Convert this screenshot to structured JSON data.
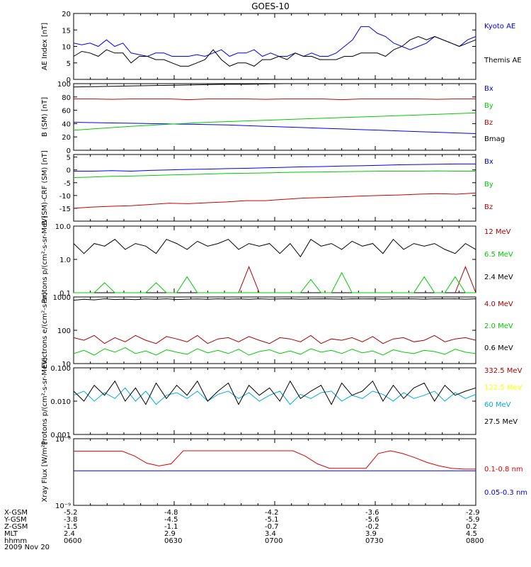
{
  "title": "GOES-10",
  "date_label": "2009 Nov 20",
  "time_axis": {
    "rows": [
      {
        "label": "X-GSM",
        "values": [
          "-5.2",
          "-4.8",
          "-4.2",
          "-3.6",
          "-2.9"
        ]
      },
      {
        "label": "Y-GSM",
        "values": [
          "-3.8",
          "-4.5",
          "-5.1",
          "-5.6",
          "-5.9"
        ]
      },
      {
        "label": "Z-GSM",
        "values": [
          "-1.5",
          "-1.1",
          "-0.7",
          "-0.2",
          "0.2"
        ]
      },
      {
        "label": "MLT",
        "values": [
          "2.4",
          "2.9",
          "3.4",
          "3.9",
          "4.5"
        ]
      },
      {
        "label": "hhmm",
        "values": [
          "0600",
          "0630",
          "0700",
          "0730",
          "0800"
        ]
      }
    ]
  },
  "chart_data": [
    {
      "type": "line",
      "ylabel": "AE Index [nT]",
      "yticks": [
        "0",
        "5",
        "10",
        "15",
        "20"
      ],
      "ylim": [
        0,
        20
      ],
      "scale": "linear",
      "series": [
        {
          "name": "Kyoto AE",
          "color": "#0000ee",
          "values": [
            11,
            10.5,
            11,
            10,
            12,
            10,
            11,
            8,
            7.5,
            7,
            8,
            8,
            7,
            7,
            7,
            7.5,
            7,
            8,
            9,
            7,
            8,
            8,
            9,
            7,
            8,
            7,
            7,
            8,
            7,
            8,
            7,
            7,
            8,
            10,
            12,
            16,
            16,
            14,
            13,
            11,
            10,
            9,
            10,
            11,
            13,
            12,
            11,
            10,
            12,
            13
          ]
        },
        {
          "name": "Themis AE",
          "color": "#000000",
          "values": [
            7,
            8.5,
            8,
            7,
            9,
            8,
            8,
            5,
            7,
            7,
            6,
            6,
            5,
            4,
            4,
            5,
            6,
            9,
            6,
            4,
            5,
            5,
            4,
            6,
            6,
            7,
            6,
            8,
            7,
            7,
            6,
            6,
            6,
            7,
            7,
            8,
            8,
            8,
            7,
            9,
            10,
            12,
            13,
            12,
            13,
            12,
            11,
            10,
            11,
            12
          ]
        }
      ]
    },
    {
      "type": "line",
      "ylabel": "B (SM) [nT]",
      "yticks": [
        "0",
        "20",
        "40",
        "60",
        "80",
        "100"
      ],
      "ylim": [
        0,
        100
      ],
      "scale": "linear",
      "series": [
        {
          "name": "Bx",
          "color": "#0000ee",
          "values": [
            42,
            41.5,
            41,
            40.5,
            40,
            39.5,
            39,
            38.5,
            38,
            37,
            36,
            35,
            34,
            33,
            32,
            31,
            30,
            29,
            28,
            27,
            26,
            25
          ]
        },
        {
          "name": "By",
          "color": "#00cc00",
          "values": [
            30,
            32,
            34,
            36,
            37.5,
            39,
            40.5,
            42,
            43,
            44,
            45,
            46,
            47,
            48,
            49,
            50,
            51,
            52,
            53,
            54,
            55,
            56
          ]
        },
        {
          "name": "Bz",
          "color": "#cc0000",
          "values": [
            77,
            77,
            76.5,
            77,
            77,
            77,
            76,
            77,
            77,
            77,
            76.5,
            77,
            77,
            77,
            76,
            77,
            77,
            77,
            77,
            76.5,
            77,
            77
          ]
        },
        {
          "name": "Bmag",
          "color": "#000000",
          "values": [
            95,
            95.5,
            96,
            96.5,
            97,
            97.5,
            98,
            98.5,
            99,
            99,
            99.5,
            100,
            100,
            100.5,
            101,
            101,
            101.5,
            101.5,
            102,
            102,
            102,
            102
          ]
        }
      ]
    },
    {
      "type": "line",
      "ylabel": "B (SM)-CRF (SM) [nT]",
      "yticks": [
        "-15",
        "-10",
        "-5",
        "0",
        "5"
      ],
      "ylim": [
        -20,
        6
      ],
      "scale": "linear",
      "series": [
        {
          "name": "Bx",
          "color": "#0000ee",
          "values": [
            -0.5,
            -0.5,
            -0.3,
            -0.5,
            -0.2,
            0,
            0.2,
            0.3,
            0.5,
            0.6,
            0.8,
            1,
            1.2,
            1.3,
            1.5,
            1.6,
            1.8,
            2,
            2.1,
            2.2,
            2.3,
            2.3
          ]
        },
        {
          "name": "By",
          "color": "#00cc00",
          "values": [
            -3,
            -2.8,
            -2.5,
            -2.4,
            -2.2,
            -2,
            -1.8,
            -1.6,
            -1.4,
            -1.3,
            -1.2,
            -1,
            -0.9,
            -0.8,
            -0.7,
            -0.6,
            -0.5,
            -0.5,
            -0.5,
            -0.4,
            -0.5,
            -0.5
          ]
        },
        {
          "name": "Bz",
          "color": "#cc0000",
          "values": [
            -15,
            -14.5,
            -14.2,
            -14,
            -13.5,
            -13,
            -13.2,
            -12.8,
            -12.5,
            -12,
            -12,
            -11.5,
            -11,
            -10.8,
            -10.5,
            -10.2,
            -10,
            -9.8,
            -9.5,
            -9.3,
            -9.5,
            -9
          ]
        }
      ]
    },
    {
      "type": "line",
      "ylabel": "Protons p/(cm²-s-sr-MeV)",
      "yticks": [
        "0.1",
        "1.0",
        "10.0"
      ],
      "ylim": [
        0.1,
        10
      ],
      "scale": "log",
      "series": [
        {
          "name": "12 MeV",
          "color": "#aa0000",
          "values": [
            null,
            null,
            null,
            null,
            null,
            null,
            null,
            null,
            null,
            null,
            null,
            null,
            null,
            null,
            null,
            0.1,
            0.1,
            0.6,
            0.1,
            0.1,
            null,
            null,
            null,
            null,
            null,
            null,
            null,
            null,
            null,
            null,
            null,
            null,
            null,
            null,
            null,
            null,
            null,
            0.1,
            0.6,
            0.1
          ]
        },
        {
          "name": "6.5 MeV",
          "color": "#00cc00",
          "values": [
            0.1,
            0.1,
            0.1,
            0.2,
            0.1,
            0.1,
            0.1,
            0.1,
            0.2,
            0.1,
            0.1,
            0.3,
            0.1,
            0.1,
            0.1,
            0.1,
            0.1,
            0.1,
            0.1,
            0.1,
            0.1,
            0.1,
            0.1,
            0.25,
            0.1,
            0.1,
            0.4,
            0.1,
            0.1,
            0.1,
            0.1,
            0.1,
            0.1,
            0.1,
            0.3,
            0.1,
            0.1,
            0.3,
            0.1,
            0.1
          ]
        },
        {
          "name": "2.4 MeV",
          "color": "#000000",
          "values": [
            3,
            1.5,
            3,
            2.5,
            4,
            2,
            3,
            2.5,
            1.5,
            4,
            3,
            2,
            3.5,
            2.5,
            3,
            4,
            2,
            3,
            2.5,
            3,
            1.5,
            3,
            1.2,
            4,
            2.5,
            3,
            2,
            3.5,
            2.5,
            3,
            1.5,
            4,
            2,
            3,
            2.5,
            3,
            2,
            1.5,
            3,
            2
          ]
        }
      ]
    },
    {
      "type": "line",
      "ylabel": "Electrons e/(cm²-s-sr)",
      "yticks": [
        "10",
        "100",
        "1000"
      ],
      "ylim": [
        10,
        1000
      ],
      "scale": "log",
      "series": [
        {
          "name": "4.0 MeV",
          "color": "#aa0000",
          "values": [
            60,
            50,
            70,
            40,
            60,
            45,
            70,
            50,
            40,
            65,
            55,
            45,
            70,
            40,
            55,
            60,
            45,
            65,
            50,
            40,
            60,
            55,
            45,
            70,
            40,
            55,
            50,
            60,
            45,
            65,
            40,
            55,
            60,
            45,
            50,
            70,
            45,
            55,
            60,
            50
          ]
        },
        {
          "name": "2.0 MeV",
          "color": "#00cc00",
          "values": [
            20,
            25,
            18,
            28,
            22,
            30,
            20,
            24,
            18,
            26,
            22,
            19,
            28,
            21,
            25,
            20,
            27,
            18,
            23,
            26,
            20,
            24,
            19,
            28,
            22,
            25,
            20,
            27,
            21,
            24,
            18,
            26,
            22,
            20,
            25,
            23,
            19,
            27,
            22,
            20
          ]
        },
        {
          "name": "0.6 MeV",
          "color": "#000000",
          "values": [
            800,
            850,
            820,
            880,
            840,
            860,
            830,
            870,
            850,
            880,
            840,
            860,
            870,
            850,
            880,
            860,
            870,
            850,
            880,
            860,
            870,
            880,
            860,
            870,
            880,
            870,
            860,
            880,
            870,
            880,
            860,
            870,
            880,
            870,
            860,
            880,
            870,
            880,
            860,
            880
          ]
        }
      ]
    },
    {
      "type": "line",
      "ylabel": "Protons p/(cm²-s-sr-MeV)",
      "yticks": [
        "0.001",
        "0.010",
        "0.100"
      ],
      "ylim": [
        0.001,
        0.1
      ],
      "scale": "log",
      "series": [
        {
          "name": "332.5 MeV",
          "color": "#aa0000",
          "values": []
        },
        {
          "name": "122.5 MeV",
          "color": "#ffff00",
          "values": []
        },
        {
          "name": "60 MeV",
          "color": "#00aadd",
          "values": [
            0.015,
            0.02,
            0.01,
            0.018,
            0.012,
            0.025,
            0.01,
            0.02,
            0.008,
            0.015,
            0.018,
            0.012,
            0.02,
            0.01,
            0.016,
            0.02,
            0.012,
            0.018,
            0.01,
            0.015,
            0.02,
            0.008,
            0.016,
            0.012,
            0.018,
            0.02,
            0.01,
            0.015,
            0.012,
            0.02,
            0.016,
            0.01,
            0.018,
            0.012,
            0.015,
            0.02,
            0.01,
            0.018,
            0.012,
            0.016
          ]
        },
        {
          "name": "27.5 MeV",
          "color": "#000000",
          "values": [
            0.02,
            0.01,
            0.03,
            0.015,
            0.04,
            0.01,
            0.025,
            0.008,
            0.035,
            0.012,
            0.03,
            0.015,
            0.04,
            0.01,
            0.02,
            0.035,
            0.008,
            0.03,
            0.015,
            0.025,
            0.01,
            0.04,
            0.012,
            0.02,
            0.03,
            0.008,
            0.035,
            0.015,
            0.02,
            0.04,
            0.01,
            0.03,
            0.012,
            0.025,
            0.035,
            0.01,
            0.03,
            0.015,
            0.02,
            0.025
          ]
        }
      ]
    },
    {
      "type": "line",
      "ylabel": "Xray Flux [W/m²]",
      "yticks": [
        "10⁻⁸",
        "10⁻⁹"
      ],
      "ylim": [
        1e-09,
        1e-08
      ],
      "scale": "log",
      "series": [
        {
          "name": "0.1-0.8 nm",
          "color": "#dd0000",
          "values": [
            6.5e-09,
            6.5e-09,
            6.5e-09,
            6.5e-09,
            6.5e-09,
            5.5e-09,
            4.3e-09,
            3.9e-09,
            4.2e-09,
            6.6e-09,
            6.6e-09,
            6.6e-09,
            6.6e-09,
            6.6e-09,
            6.6e-09,
            6.6e-09,
            6.6e-09,
            6.6e-09,
            6.6e-09,
            5.5e-09,
            4.2e-09,
            3.6e-09,
            3.6e-09,
            3.6e-09,
            3.6e-09,
            6e-09,
            6.6e-09,
            6e-09,
            5.2e-09,
            4.4e-09,
            3.9e-09,
            3.6e-09,
            3.5e-09,
            3.5e-09
          ]
        },
        {
          "name": "0.05-0.3 nm",
          "color": "#0000ee",
          "values": [
            3.3e-09,
            3.3e-09,
            3.3e-09,
            3.3e-09,
            3.3e-09,
            3.3e-09,
            3.3e-09,
            3.3e-09,
            3.3e-09,
            3.3e-09,
            3.3e-09,
            3.3e-09,
            3.3e-09,
            3.3e-09,
            3.3e-09,
            3.3e-09,
            3.3e-09,
            3.3e-09,
            3.3e-09,
            3.3e-09,
            3.3e-09,
            3.3e-09,
            3.3e-09,
            3.3e-09,
            3.3e-09,
            3.3e-09,
            3.3e-09,
            3.3e-09,
            3.3e-09,
            3.3e-09,
            3.3e-09,
            3.3e-09,
            3.3e-09,
            3.3e-09
          ]
        }
      ]
    }
  ]
}
